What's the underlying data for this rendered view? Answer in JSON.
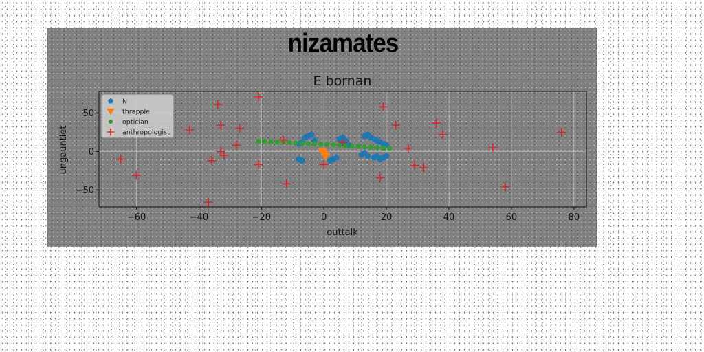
{
  "chart_data": {
    "type": "scatter",
    "suptitle": "nizamates",
    "title": "E bornan",
    "xlabel": "outtalk",
    "ylabel": "ungauntlet",
    "xlim": [
      -72,
      84
    ],
    "ylim": [
      -72,
      78
    ],
    "xticks": [
      -60,
      -40,
      -20,
      0,
      20,
      40,
      60,
      80
    ],
    "yticks": [
      -50,
      0,
      50
    ],
    "grid": true,
    "legend_position": "upper-left",
    "series": [
      {
        "name": "N",
        "marker": "pentagon",
        "color": "#1f77b4",
        "points": [
          [
            -8,
            10
          ],
          [
            -7,
            12
          ],
          [
            -6,
            18
          ],
          [
            -5,
            20
          ],
          [
            -4,
            22
          ],
          [
            -3,
            14
          ],
          [
            -8,
            -10
          ],
          [
            -7,
            -12
          ],
          [
            5,
            16
          ],
          [
            6,
            18
          ],
          [
            7,
            14
          ],
          [
            6,
            10
          ],
          [
            8,
            8
          ],
          [
            2,
            -12
          ],
          [
            3,
            -10
          ],
          [
            4,
            -8
          ],
          [
            12,
            -4
          ],
          [
            13,
            -2
          ],
          [
            14,
            -6
          ],
          [
            13,
            20
          ],
          [
            14,
            22
          ],
          [
            15,
            18
          ],
          [
            16,
            16
          ],
          [
            17,
            14
          ],
          [
            18,
            12
          ],
          [
            19,
            10
          ],
          [
            20,
            8
          ],
          [
            16,
            -8
          ],
          [
            17,
            -6
          ],
          [
            18,
            -10
          ],
          [
            19,
            -8
          ],
          [
            20,
            -6
          ]
        ]
      },
      {
        "name": "thrapple",
        "marker": "triangle-down",
        "color": "#ff7f0e",
        "points": [
          [
            0,
            -2
          ],
          [
            0.5,
            -6
          ],
          [
            -0.5,
            0
          ]
        ]
      },
      {
        "name": "optician",
        "marker": "dot",
        "color": "#2ca02c",
        "points": [
          [
            -21,
            13
          ],
          [
            -19,
            13
          ],
          [
            -17,
            12.5
          ],
          [
            -15,
            12
          ],
          [
            -13,
            12
          ],
          [
            -11,
            11.5
          ],
          [
            -9,
            11
          ],
          [
            -7,
            10.5
          ],
          [
            -5,
            10
          ],
          [
            -3,
            10
          ],
          [
            -1,
            9.5
          ],
          [
            1,
            9
          ],
          [
            3,
            8.5
          ],
          [
            5,
            8
          ],
          [
            7,
            7.5
          ],
          [
            9,
            7
          ],
          [
            11,
            6.5
          ],
          [
            13,
            6
          ],
          [
            15,
            5.5
          ],
          [
            17,
            5
          ],
          [
            19,
            4.5
          ],
          [
            21,
            4
          ]
        ]
      },
      {
        "name": "anthropologist",
        "marker": "plus",
        "color": "#d62728",
        "points": [
          [
            -65,
            -10
          ],
          [
            -60,
            -31
          ],
          [
            -43,
            28
          ],
          [
            -37,
            -66
          ],
          [
            -36,
            -12
          ],
          [
            -34,
            61
          ],
          [
            -33,
            34
          ],
          [
            -33,
            0
          ],
          [
            -32,
            -5
          ],
          [
            -28,
            8
          ],
          [
            -27,
            30
          ],
          [
            -21,
            71
          ],
          [
            -21,
            -17
          ],
          [
            -13,
            15
          ],
          [
            -12,
            -42
          ],
          [
            0,
            -17
          ],
          [
            6,
            12
          ],
          [
            18,
            -34
          ],
          [
            19,
            58
          ],
          [
            23,
            34
          ],
          [
            27,
            4
          ],
          [
            29,
            -18
          ],
          [
            32,
            -21
          ],
          [
            36,
            37
          ],
          [
            38,
            22
          ],
          [
            54,
            5
          ],
          [
            58,
            -46
          ],
          [
            76,
            25
          ]
        ]
      }
    ]
  }
}
